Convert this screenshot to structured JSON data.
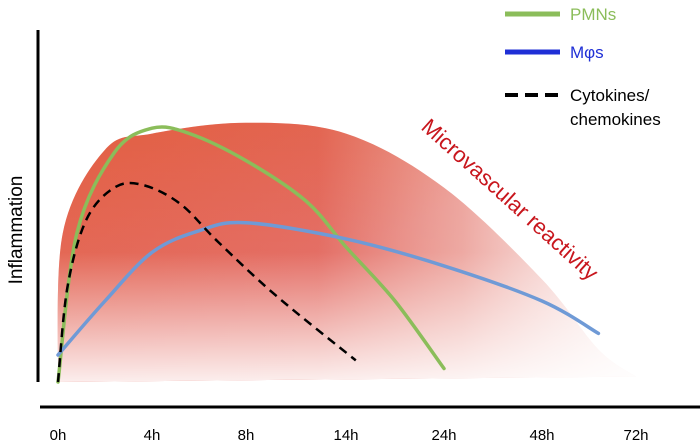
{
  "chart_data": {
    "type": "line",
    "title": "",
    "xlabel": "",
    "ylabel": "Inflammation",
    "categories": [
      "0h",
      "4h",
      "8h",
      "14h",
      "24h",
      "48h",
      "72h"
    ],
    "shaded_area": {
      "name": "Microvascular reactivity",
      "color": "#e0564b",
      "points": [
        [
          0,
          0
        ],
        [
          0.05,
          0.55
        ],
        [
          0.5,
          0.86
        ],
        [
          1,
          0.92
        ],
        [
          2,
          0.96
        ],
        [
          3,
          0.92
        ],
        [
          4,
          0.72
        ],
        [
          5,
          0.38
        ],
        [
          5.6,
          0.12
        ],
        [
          6,
          0.02
        ]
      ]
    },
    "series": [
      {
        "name": "PMNs",
        "color": "#8bbd5a",
        "style": "solid",
        "points": [
          [
            0,
            0
          ],
          [
            0.2,
            0.55
          ],
          [
            0.6,
            0.85
          ],
          [
            1,
            0.94
          ],
          [
            1.4,
            0.92
          ],
          [
            2,
            0.82
          ],
          [
            2.6,
            0.67
          ],
          [
            3,
            0.5
          ],
          [
            3.5,
            0.3
          ],
          [
            4,
            0.05
          ]
        ]
      },
      {
        "name": "Mφs",
        "color": "#6f9ad6",
        "style": "solid",
        "points": [
          [
            0,
            0.1
          ],
          [
            0.5,
            0.3
          ],
          [
            1,
            0.48
          ],
          [
            1.5,
            0.56
          ],
          [
            2,
            0.59
          ],
          [
            3,
            0.53
          ],
          [
            4,
            0.43
          ],
          [
            5,
            0.3
          ],
          [
            5.6,
            0.18
          ]
        ]
      },
      {
        "name": "Cytokines/ chemokines",
        "color": "#000000",
        "style": "dashed",
        "points": [
          [
            0,
            0
          ],
          [
            0.1,
            0.35
          ],
          [
            0.3,
            0.6
          ],
          [
            0.6,
            0.72
          ],
          [
            0.9,
            0.73
          ],
          [
            1.3,
            0.66
          ],
          [
            1.7,
            0.52
          ],
          [
            2.3,
            0.32
          ],
          [
            3.1,
            0.08
          ]
        ]
      }
    ],
    "legend": [
      {
        "label": "PMNs",
        "color": "#8bbd5a",
        "style": "solid"
      },
      {
        "label": "Mφs",
        "color": "#1f2fd6",
        "style": "solid"
      },
      {
        "label": "Cytokines/",
        "label2": "chemokines",
        "color": "#000000",
        "style": "dashed"
      }
    ],
    "annotation": {
      "text": "Microvascular reactivity",
      "color": "#c8161d"
    },
    "legend_position": "top-right",
    "grid": false
  }
}
